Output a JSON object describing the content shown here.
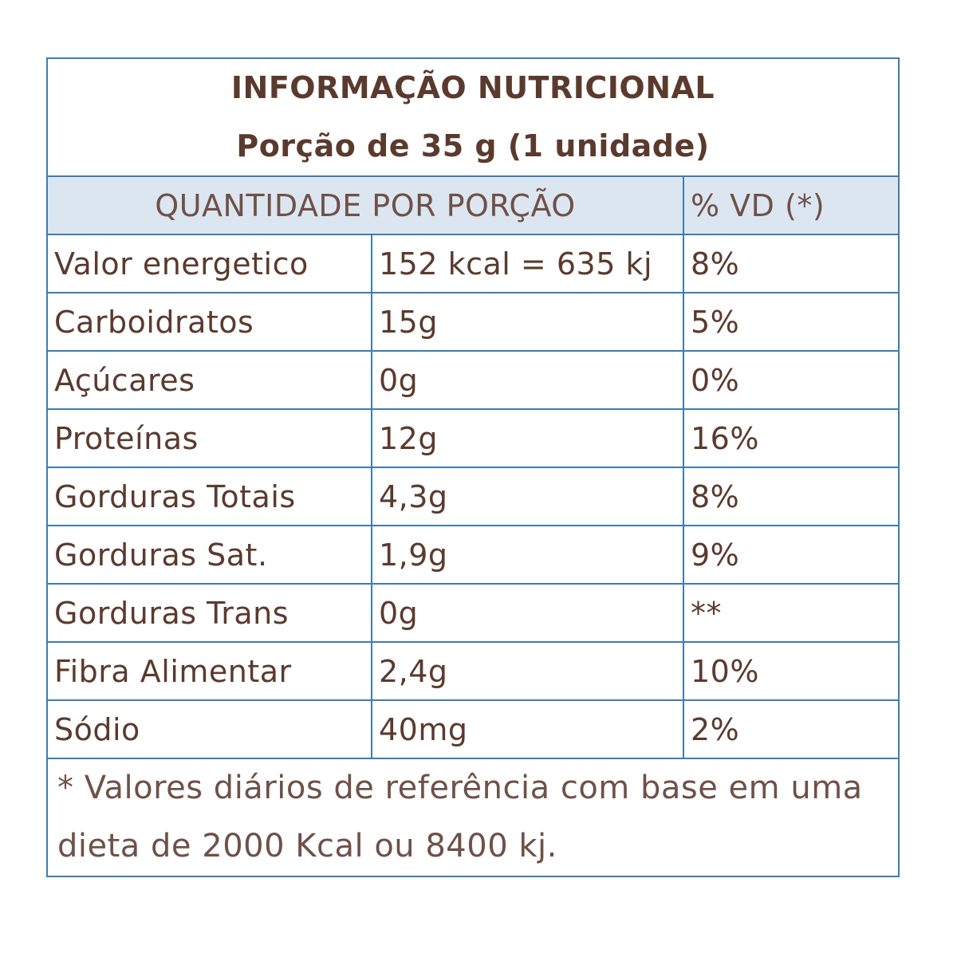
{
  "header": {
    "title": "INFORMAÇÃO NUTRICIONAL",
    "portion": "Porção de 35 g (1 unidade)"
  },
  "columns": {
    "quantity": "QUANTIDADE POR PORÇÃO",
    "dv": "% VD (*)"
  },
  "rows": [
    {
      "nutrient": "Valor energetico",
      "amount": "152 kcal = 635 kj",
      "dv": "8%"
    },
    {
      "nutrient": "Carboidratos",
      "amount": "15g",
      "dv": "5%"
    },
    {
      "nutrient": "Açúcares",
      "amount": "0g",
      "dv": "0%"
    },
    {
      "nutrient": "Proteínas",
      "amount": "12g",
      "dv": "16%"
    },
    {
      "nutrient": "Gorduras Totais",
      "amount": "4,3g",
      "dv": "8%"
    },
    {
      "nutrient": "Gorduras Sat.",
      "amount": "1,9g",
      "dv": "9%"
    },
    {
      "nutrient": "Gorduras Trans",
      "amount": "0g",
      "dv": "**"
    },
    {
      "nutrient": "Fibra Alimentar",
      "amount": "2,4g",
      "dv": "10%"
    },
    {
      "nutrient": "Sódio",
      "amount": "40mg",
      "dv": "2%"
    }
  ],
  "footnote": "* Valores diários de referência com base em uma dieta de 2000 Kcal ou 8400 kj.",
  "colors": {
    "border": "#3e7cb1",
    "header_bg": "#dce6f1",
    "text": "#5b3a2e"
  }
}
